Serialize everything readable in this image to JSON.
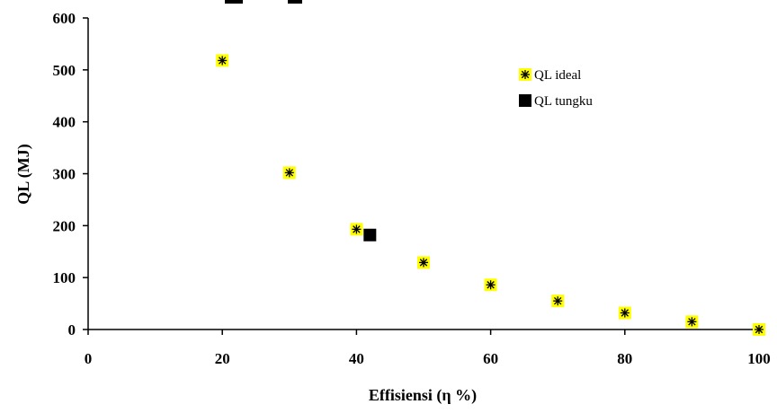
{
  "chart_data": {
    "type": "scatter",
    "title": "",
    "xlabel": "Effisiensi (η %)",
    "ylabel": "QL (MJ)",
    "xlim": [
      0,
      100
    ],
    "ylim": [
      0,
      600
    ],
    "xticks": [
      "0",
      "20",
      "40",
      "60",
      "80",
      "100"
    ],
    "yticks": [
      "0",
      "100",
      "200",
      "300",
      "400",
      "500",
      "600"
    ],
    "grid": false,
    "legend_position": "top-right",
    "series": [
      {
        "name": "QL ideal",
        "marker": "yellow-square-asterisk",
        "color": "#ffff00",
        "points": [
          {
            "x": 20,
            "y": 518
          },
          {
            "x": 30,
            "y": 302
          },
          {
            "x": 40,
            "y": 193
          },
          {
            "x": 50,
            "y": 129
          },
          {
            "x": 60,
            "y": 86
          },
          {
            "x": 70,
            "y": 55
          },
          {
            "x": 80,
            "y": 32
          },
          {
            "x": 90,
            "y": 15
          },
          {
            "x": 100,
            "y": 0
          }
        ]
      },
      {
        "name": "QL tungku",
        "marker": "black-square",
        "color": "#000000",
        "points": [
          {
            "x": 42,
            "y": 182
          }
        ]
      }
    ]
  }
}
